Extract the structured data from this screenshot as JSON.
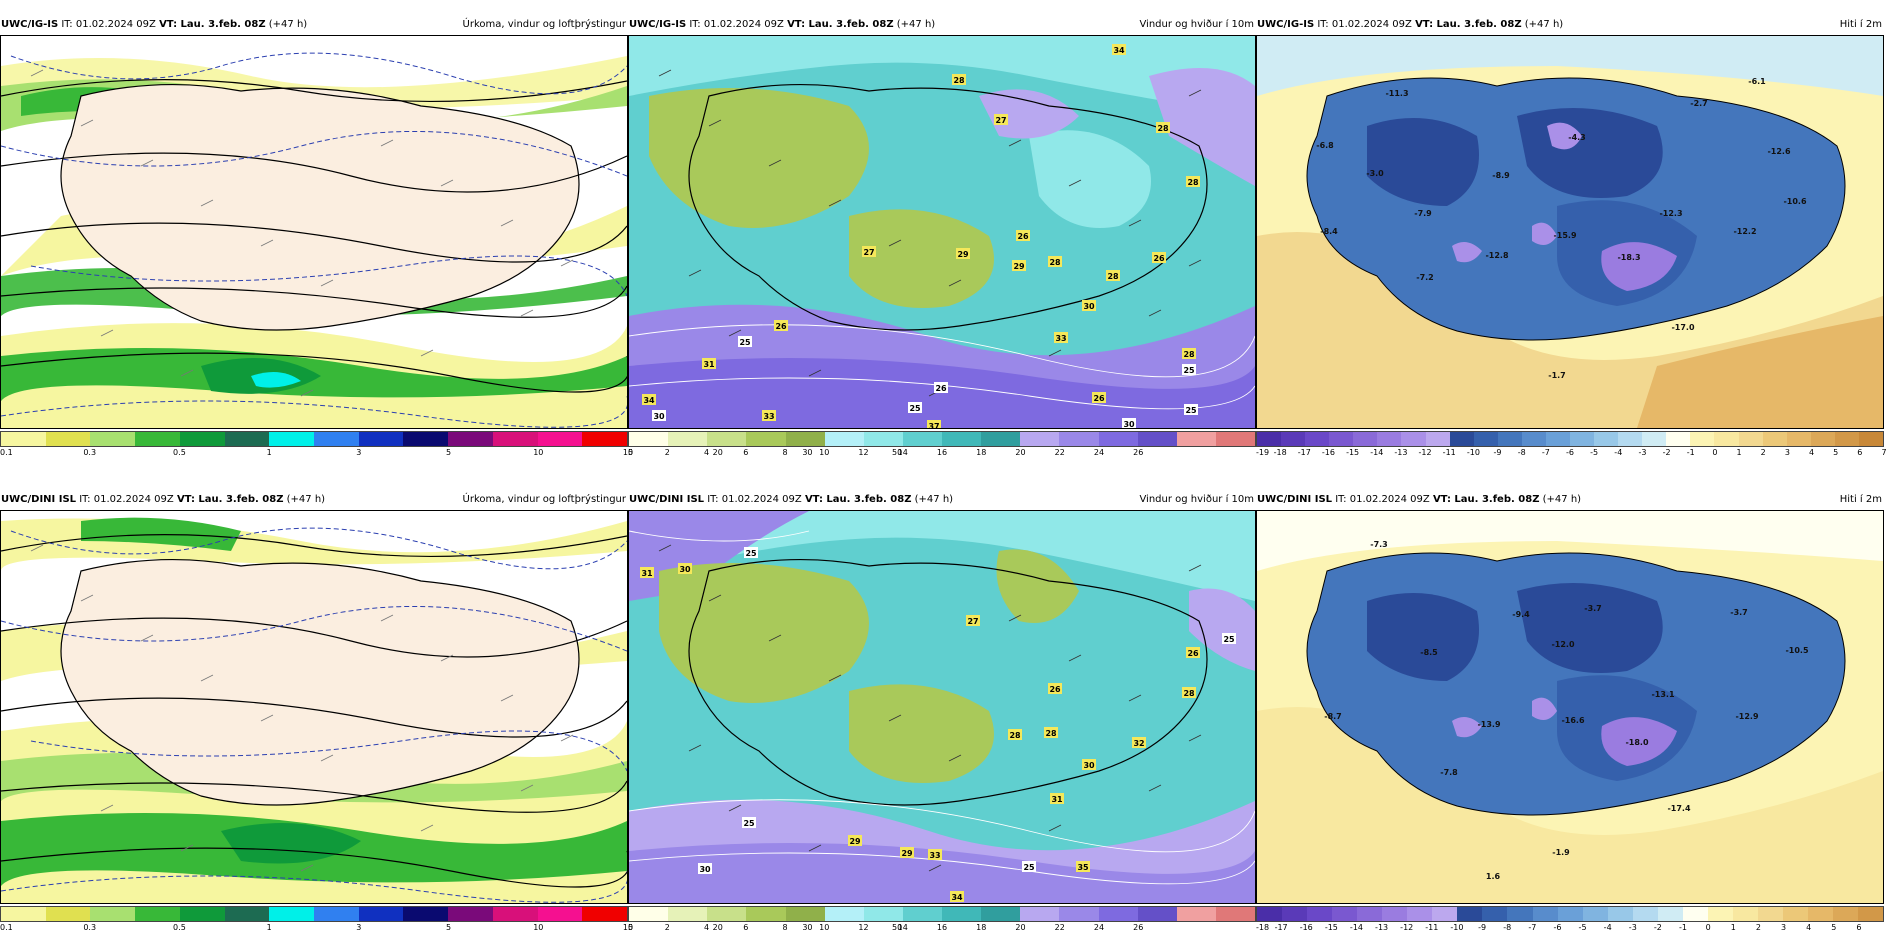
{
  "panels": [
    {
      "id": "p1",
      "model": "UWC/IG-IS",
      "run": "IT: 01.02.2024 09Z",
      "valid": "VT: Lau. 3.feb. 08Z",
      "step": "(+47 h)",
      "product": "Úrkoma, vindur og loftþrýstingur",
      "colorbar": {
        "colors": [
          "#f6f6a0",
          "#e0e050",
          "#a8e070",
          "#38b838",
          "#0f9a3a",
          "#1d6b52",
          "#00f0e8",
          "#3080f0",
          "#1030c0",
          "#0a0a70",
          "#7a0a7a",
          "#d8107a",
          "#f51090",
          "#f00000"
        ],
        "ticks": [
          "0.1",
          "0.3",
          "0.5",
          "1",
          "3",
          "5",
          "10",
          "15",
          "20",
          "30",
          "50"
        ],
        "tick_positions": [
          0,
          2,
          4,
          6,
          8,
          10,
          12,
          14,
          16,
          18,
          20
        ]
      }
    },
    {
      "id": "p2",
      "model": "UWC/IG-IS",
      "run": "IT: 01.02.2024 09Z",
      "valid": "VT: Lau. 3.feb. 08Z",
      "step": "(+47 h)",
      "product": "Vindur og hviður í 10m",
      "colorbar": {
        "colors": [
          "#ffffe8",
          "#e6f2b8",
          "#c8e08a",
          "#a9c95a",
          "#90b04a",
          "#b4f0f8",
          "#90e8e8",
          "#60cfcf",
          "#40b8b8",
          "#309e9e",
          "#b8a8f0",
          "#9a88e8",
          "#7e6ae0",
          "#6450c8",
          "#f0a0a0",
          "#e07878"
        ],
        "ticks": [
          "0",
          "2",
          "4",
          "6",
          "8",
          "10",
          "12",
          "14",
          "16",
          "18",
          "20",
          "22",
          "24",
          "26"
        ],
        "tick_positions": [
          0,
          1,
          2,
          3,
          4,
          5,
          6,
          7,
          8,
          9,
          10,
          11,
          12,
          13
        ]
      },
      "labels": [
        "34",
        "28",
        "27",
        "28",
        "28",
        "26",
        "27",
        "29",
        "29",
        "28",
        "28",
        "26",
        "30",
        "33",
        "26",
        "25",
        "31",
        "34",
        "33",
        "30",
        "28",
        "25",
        "26",
        "25",
        "26",
        "30",
        "37",
        "25"
      ]
    },
    {
      "id": "p3",
      "model": "UWC/IG-IS",
      "run": "IT: 01.02.2024 09Z",
      "valid": "VT: Lau. 3.feb. 08Z",
      "step": "(+47 h)",
      "product": "Hiti í 2m",
      "colorbar": {
        "colors": [
          "#4a2ea8",
          "#5a3ab8",
          "#6a48c8",
          "#7a58d0",
          "#8a6ad8",
          "#9a7ce0",
          "#aa90e8",
          "#bca8ee",
          "#2a4a98",
          "#3560ac",
          "#4476bc",
          "#588ccc",
          "#6aa0d8",
          "#80b4e0",
          "#98c8e8",
          "#b4daf0",
          "#d0ecf4",
          "#fffff0",
          "#fcf4b4",
          "#f8e8a0",
          "#f2d890",
          "#ecc878",
          "#e6b868",
          "#dca858",
          "#d29848",
          "#c88838"
        ],
        "ticks": [
          "-19",
          "-18",
          "-17",
          "-16",
          "-15",
          "-14",
          "-13",
          "-12",
          "-11",
          "-10",
          "-9",
          "-8",
          "-7",
          "-6",
          "-5",
          "-4",
          "-3",
          "-2",
          "-1",
          "0",
          "1",
          "2",
          "3",
          "4",
          "5",
          "6",
          "7"
        ],
        "tick_positions": [
          0,
          1,
          2,
          3,
          4,
          5,
          6,
          7,
          8,
          9,
          10,
          11,
          12,
          13,
          14,
          15,
          16,
          17,
          18,
          19,
          20,
          21,
          22,
          23,
          24,
          25,
          26
        ]
      },
      "labels": [
        "-11.3",
        "-6.1",
        "-6.8",
        "-2.7",
        "-4.3",
        "-12.6",
        "-3.0",
        "-8.9",
        "-10.6",
        "-7.9",
        "-12.3",
        "-8.4",
        "-15.9",
        "-12.2",
        "-12.8",
        "-18.3",
        "-7.2",
        "-17.0",
        "-1.7"
      ]
    },
    {
      "id": "p4",
      "model": "UWC/DINI ISL",
      "run": "IT: 01.02.2024 09Z",
      "valid": "VT: Lau. 3.feb. 08Z",
      "step": "(+47 h)",
      "product": "Úrkoma, vindur og loftþrýstingur",
      "colorbar": {
        "colors": [
          "#f6f6a0",
          "#e0e050",
          "#a8e070",
          "#38b838",
          "#0f9a3a",
          "#1d6b52",
          "#00f0e8",
          "#3080f0",
          "#1030c0",
          "#0a0a70",
          "#7a0a7a",
          "#d8107a",
          "#f51090",
          "#f00000"
        ],
        "ticks": [
          "0.1",
          "0.3",
          "0.5",
          "1",
          "3",
          "5",
          "10",
          "15",
          "20",
          "30",
          "50"
        ],
        "tick_positions": [
          0,
          2,
          4,
          6,
          8,
          10,
          12,
          14,
          16,
          18,
          20
        ]
      }
    },
    {
      "id": "p5",
      "model": "UWC/DINI ISL",
      "run": "IT: 01.02.2024 09Z",
      "valid": "VT: Lau. 3.feb. 08Z",
      "step": "(+47 h)",
      "product": "Vindur og hviður í 10m",
      "colorbar": {
        "colors": [
          "#ffffe8",
          "#e6f2b8",
          "#c8e08a",
          "#a9c95a",
          "#90b04a",
          "#b4f0f8",
          "#90e8e8",
          "#60cfcf",
          "#40b8b8",
          "#309e9e",
          "#b8a8f0",
          "#9a88e8",
          "#7e6ae0",
          "#6450c8",
          "#f0a0a0",
          "#e07878"
        ],
        "ticks": [
          "0",
          "2",
          "4",
          "6",
          "8",
          "10",
          "12",
          "14",
          "16",
          "18",
          "20",
          "22",
          "24",
          "26"
        ],
        "tick_positions": [
          0,
          1,
          2,
          3,
          4,
          5,
          6,
          7,
          8,
          9,
          10,
          11,
          12,
          13
        ]
      },
      "labels": [
        "31",
        "30",
        "25",
        "27",
        "26",
        "25",
        "26",
        "28",
        "28",
        "28",
        "30",
        "32",
        "31",
        "25",
        "29",
        "29",
        "33",
        "30",
        "35",
        "34",
        "25"
      ]
    },
    {
      "id": "p6",
      "model": "UWC/DINI ISL",
      "run": "IT: 01.02.2024 09Z",
      "valid": "VT: Lau. 3.feb. 08Z",
      "step": "(+47 h)",
      "product": "Hiti í 2m",
      "colorbar": {
        "colors": [
          "#4a2ea8",
          "#5a3ab8",
          "#6a48c8",
          "#7a58d0",
          "#8a6ad8",
          "#9a7ce0",
          "#aa90e8",
          "#bca8ee",
          "#2a4a98",
          "#3560ac",
          "#4476bc",
          "#588ccc",
          "#6aa0d8",
          "#80b4e0",
          "#98c8e8",
          "#b4daf0",
          "#d0ecf4",
          "#fffff0",
          "#fcf4b4",
          "#f8e8a0",
          "#f2d890",
          "#ecc878",
          "#e6b868",
          "#dca858",
          "#d29848"
        ],
        "ticks": [
          "-18",
          "-17",
          "-16",
          "-15",
          "-14",
          "-13",
          "-12",
          "-11",
          "-10",
          "-9",
          "-8",
          "-7",
          "-6",
          "-5",
          "-4",
          "-3",
          "-2",
          "-1",
          "0",
          "1",
          "2",
          "3",
          "4",
          "5",
          "6"
        ],
        "tick_positions": [
          0,
          1,
          2,
          3,
          4,
          5,
          6,
          7,
          8,
          9,
          10,
          11,
          12,
          13,
          14,
          15,
          16,
          17,
          18,
          19,
          20,
          21,
          22,
          23,
          24
        ]
      },
      "labels": [
        "-7.3",
        "-9.4",
        "-3.7",
        "-3.7",
        "-8.5",
        "-12.0",
        "-10.5",
        "-13.1",
        "-8.7",
        "-13.9",
        "-16.6",
        "-12.9",
        "-18.0",
        "-7.8",
        "-17.4",
        "-1.9",
        "1.6"
      ]
    }
  ]
}
